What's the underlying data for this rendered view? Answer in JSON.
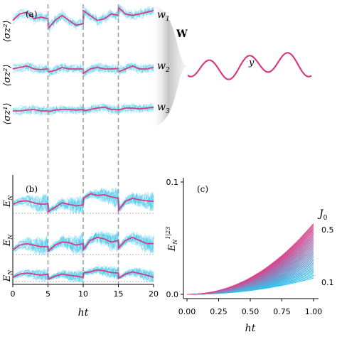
{
  "colors": {
    "accent": "#d63c86",
    "samples": "#3cc8ea",
    "bracket": "#b9b9b9",
    "divider": "#a0a0a0",
    "grad_high": "#e0418a",
    "grad_low": "#2ec6f0"
  },
  "chart_data": [
    {
      "type": "line",
      "panel": "(a)",
      "xlabel": "ht",
      "ylabel_rows": [
        "⟨σz²⟩",
        "⟨σz²⟩",
        "⟨σz¹⟩"
      ],
      "row_labels": [
        "w1",
        "w2",
        "w3"
      ],
      "output_label": "W",
      "output_signal_label": "y",
      "xlim": [
        0,
        20
      ],
      "segment_boundaries": [
        5,
        10,
        15
      ],
      "series": [
        {
          "row": "w1",
          "x": [
            0,
            1,
            2,
            3,
            4,
            5,
            5.01,
            6,
            7,
            8,
            9,
            10,
            10.01,
            11,
            12,
            13,
            14,
            15,
            15.01,
            16,
            17,
            18,
            19,
            20
          ],
          "values": [
            0.55,
            0.75,
            0.8,
            0.6,
            0.65,
            0.6,
            0.3,
            0.55,
            0.7,
            0.55,
            0.4,
            0.45,
            0.85,
            0.7,
            0.55,
            0.6,
            0.75,
            0.7,
            0.95,
            0.75,
            0.7,
            0.75,
            0.8,
            0.85
          ]
        },
        {
          "row": "w2",
          "x": [
            0,
            1,
            2,
            3,
            4,
            5,
            5.01,
            6,
            7,
            8,
            9,
            10,
            10.01,
            11,
            12,
            13,
            14,
            15,
            15.01,
            16,
            17,
            18,
            19,
            20
          ],
          "values": [
            0.5,
            0.55,
            0.6,
            0.5,
            0.48,
            0.5,
            0.4,
            0.45,
            0.55,
            0.5,
            0.5,
            0.5,
            0.35,
            0.5,
            0.55,
            0.5,
            0.5,
            0.52,
            0.4,
            0.5,
            0.6,
            0.5,
            0.5,
            0.55
          ]
        },
        {
          "row": "w3",
          "x": [
            0,
            1,
            2,
            3,
            4,
            5,
            5.01,
            6,
            7,
            8,
            9,
            10,
            10.01,
            11,
            12,
            13,
            14,
            15,
            15.01,
            16,
            17,
            18,
            19,
            20
          ],
          "values": [
            0.45,
            0.45,
            0.48,
            0.5,
            0.45,
            0.45,
            0.42,
            0.48,
            0.5,
            0.5,
            0.48,
            0.5,
            0.45,
            0.5,
            0.55,
            0.58,
            0.5,
            0.5,
            0.48,
            0.55,
            0.55,
            0.52,
            0.55,
            0.58
          ]
        }
      ]
    },
    {
      "type": "line",
      "panel": "(b)",
      "xlabel": "ht",
      "ylabel_rows": [
        "EN",
        "EN",
        "EN"
      ],
      "xlim": [
        0,
        20
      ],
      "xticks": [
        "0",
        "5",
        "10",
        "15",
        "20"
      ],
      "segment_boundaries": [
        5,
        10,
        15
      ],
      "series": [
        {
          "row": 1,
          "x": [
            0,
            1,
            2,
            3,
            4,
            5,
            5.01,
            6,
            7,
            8,
            9,
            10,
            10.01,
            11,
            12,
            13,
            14,
            15,
            15.01,
            16,
            17,
            18,
            19,
            20
          ],
          "values": [
            0.3,
            0.4,
            0.42,
            0.35,
            0.3,
            0.32,
            0.05,
            0.2,
            0.35,
            0.3,
            0.25,
            0.28,
            0.5,
            0.65,
            0.6,
            0.62,
            0.55,
            0.5,
            0.1,
            0.4,
            0.5,
            0.45,
            0.42,
            0.4
          ]
        },
        {
          "row": 2,
          "x": [
            0,
            1,
            2,
            3,
            4,
            5,
            5.01,
            6,
            7,
            8,
            9,
            10,
            10.01,
            11,
            12,
            13,
            14,
            15,
            15.01,
            16,
            17,
            18,
            19,
            20
          ],
          "values": [
            0.15,
            0.3,
            0.35,
            0.3,
            0.25,
            0.25,
            0.1,
            0.3,
            0.4,
            0.38,
            0.3,
            0.35,
            0.15,
            0.45,
            0.55,
            0.5,
            0.4,
            0.45,
            0.2,
            0.45,
            0.55,
            0.45,
            0.35,
            0.35
          ]
        },
        {
          "row": 3,
          "x": [
            0,
            1,
            2,
            3,
            4,
            5,
            5.01,
            6,
            7,
            8,
            9,
            10,
            10.01,
            11,
            12,
            13,
            14,
            15,
            15.01,
            16,
            17,
            18,
            19,
            20
          ],
          "values": [
            0.2,
            0.35,
            0.4,
            0.35,
            0.3,
            0.35,
            0.1,
            0.25,
            0.35,
            0.3,
            0.25,
            0.2,
            0.4,
            0.45,
            0.55,
            0.5,
            0.42,
            0.4,
            0.15,
            0.35,
            0.45,
            0.38,
            0.3,
            0.2
          ]
        }
      ]
    },
    {
      "type": "line",
      "panel": "(c)",
      "title": "",
      "xlabel": "ht",
      "ylabel": "EN1|23",
      "xlim": [
        0,
        1
      ],
      "ylim": [
        0,
        0.1
      ],
      "xticks": [
        "0.00",
        "0.25",
        "0.50",
        "0.75",
        "1.00"
      ],
      "yticks": [
        "0.0",
        "0.1"
      ],
      "legend_title": "J0",
      "legend_labels": [
        "0.5",
        "0.1"
      ],
      "family": {
        "param_min": 0.1,
        "param_max": 0.5,
        "count": 41,
        "endpoint_at_x1": {
          "J0_0.5": 0.063,
          "J0_0.1": 0.0145
        }
      }
    }
  ],
  "text": {
    "panel_a": "(a)",
    "panel_b": "(b)",
    "panel_c": "(c)",
    "w1": "w",
    "w2": "w",
    "w3": "w",
    "s1": "1",
    "s2": "2",
    "s3": "3",
    "W": "W",
    "y": "y",
    "J0": "J",
    "J0sub": "0",
    "J_high": "0.5",
    "J_low": "0.1",
    "ht_b": "ht",
    "ht_c": "ht",
    "c_y_top": "0.1",
    "c_y_bot": "0.0",
    "EN": "E",
    "ENsub": "N",
    "c_sup": "1|23",
    "sigma_a1": "⟨σz²⟩",
    "sigma_a2": "⟨σz²⟩",
    "sigma_a3": "⟨σz¹⟩",
    "b_x0": "0",
    "b_x5": "5",
    "b_x10": "10",
    "b_x15": "15",
    "b_x20": "20",
    "c_x0": "0.00",
    "c_x25": "0.25",
    "c_x50": "0.50",
    "c_x75": "0.75",
    "c_x100": "1.00"
  }
}
